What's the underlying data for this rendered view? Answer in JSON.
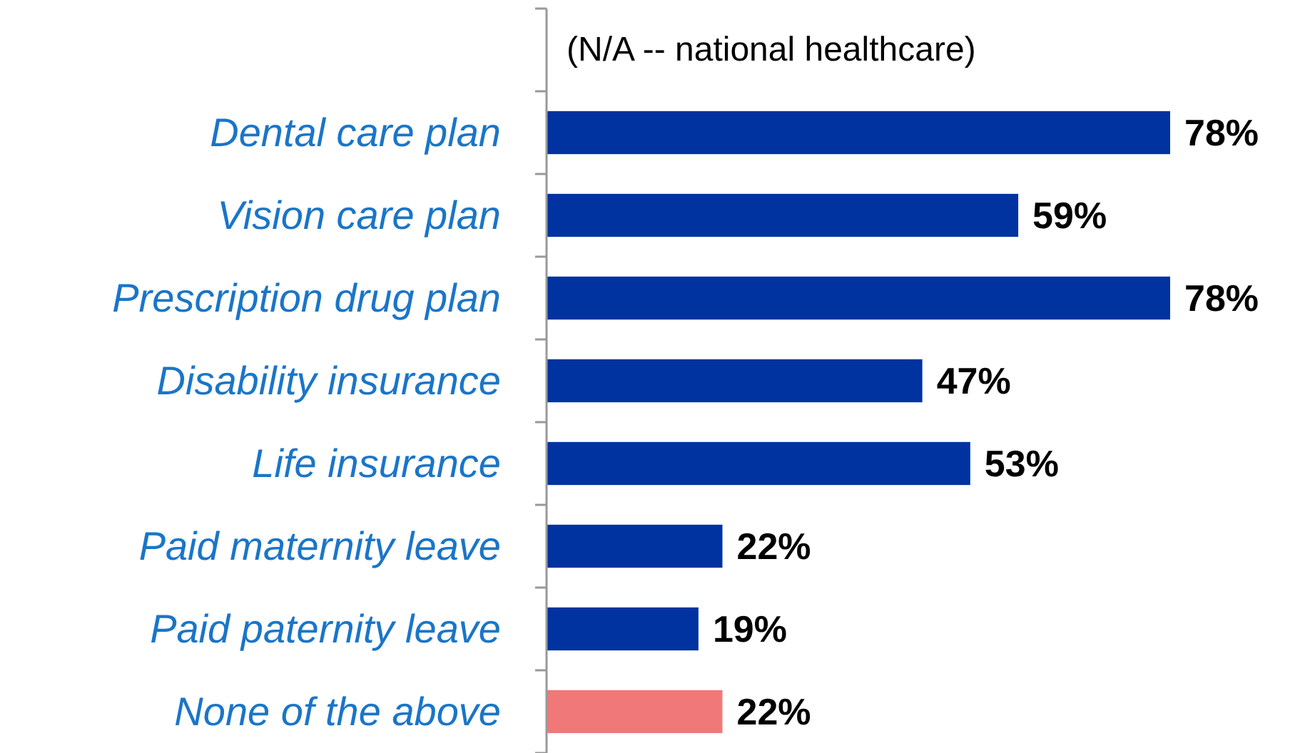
{
  "chart_data": {
    "type": "bar",
    "orientation": "horizontal",
    "categories": [
      null,
      "Dental care plan",
      "Vision care plan",
      "Prescription drug plan",
      "Disability insurance",
      "Life insurance",
      "Paid maternity leave",
      "Paid paternity leave",
      "None of the above"
    ],
    "values": [
      null,
      78,
      59,
      78,
      47,
      53,
      22,
      19,
      22
    ],
    "colors": [
      null,
      "#0033a0",
      "#0033a0",
      "#0033a0",
      "#0033a0",
      "#0033a0",
      "#0033a0",
      "#0033a0",
      "#f07878"
    ],
    "value_labels": [
      null,
      "78%",
      "59%",
      "78%",
      "47%",
      "53%",
      "22%",
      "19%",
      "22%"
    ],
    "annotations": [
      "(N/A -- national healthcare)"
    ]
  }
}
